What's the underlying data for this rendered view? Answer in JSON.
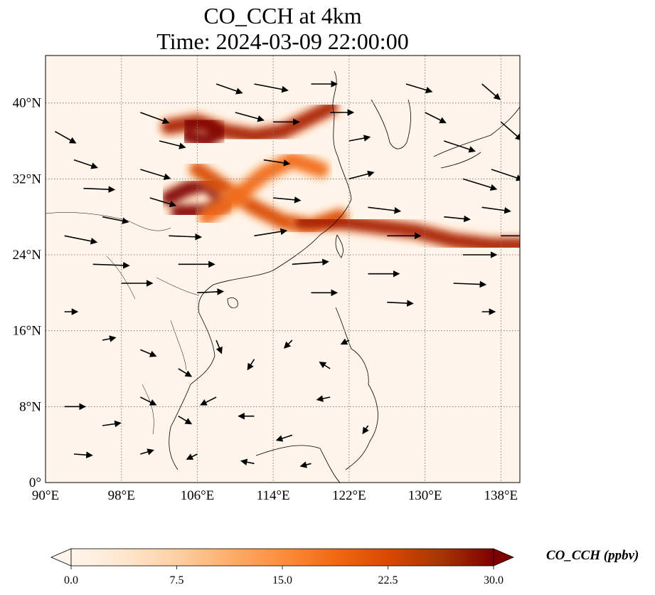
{
  "title_line1": "CO_CCH at 4km",
  "title_line2": "Time: 2024-03-09 22:00:00",
  "map": {
    "lon_range": [
      90,
      140
    ],
    "lat_range": [
      0,
      45
    ],
    "lat_ticks": [
      {
        "value": 0,
        "label": "0°"
      },
      {
        "value": 8,
        "label": "8°N"
      },
      {
        "value": 16,
        "label": "16°N"
      },
      {
        "value": 24,
        "label": "24°N"
      },
      {
        "value": 32,
        "label": "32°N"
      },
      {
        "value": 40,
        "label": "40°N"
      }
    ],
    "lon_ticks": [
      {
        "value": 90,
        "label": "90°E"
      },
      {
        "value": 98,
        "label": "98°E"
      },
      {
        "value": 106,
        "label": "106°E"
      },
      {
        "value": 114,
        "label": "114°E"
      },
      {
        "value": 122,
        "label": "122°E"
      },
      {
        "value": 130,
        "label": "130°E"
      },
      {
        "value": 138,
        "label": "138°E"
      }
    ],
    "gridlines": true,
    "background_color": "#fff5eb",
    "coastline_color": "#000000"
  },
  "colorbar": {
    "label": "CO_CCH (ppbv)",
    "min": 0.0,
    "max": 30.0,
    "extend": "both",
    "ticks": [
      "0.0",
      "7.5",
      "15.0",
      "22.5",
      "30.0"
    ],
    "colormap": [
      "#fff5eb",
      "#fee6ce",
      "#fdd0a2",
      "#fdae6b",
      "#fd8d3c",
      "#f16913",
      "#d94801",
      "#a63603",
      "#7f0000"
    ]
  },
  "plumes": [
    {
      "name": "north-china-plume",
      "color": "#a61c00",
      "lonlat": [
        [
          103,
          37.5
        ],
        [
          106,
          38
        ],
        [
          109,
          37
        ],
        [
          112,
          36.5
        ],
        [
          115,
          37
        ],
        [
          118,
          38.5
        ],
        [
          120,
          39.5
        ]
      ]
    },
    {
      "name": "sichuan-hotspot",
      "color": "#7f0000",
      "lonlat": [
        [
          103,
          30
        ],
        [
          105,
          31
        ],
        [
          107,
          31.5
        ],
        [
          109,
          29.5
        ],
        [
          107,
          28.5
        ],
        [
          104,
          28.5
        ]
      ]
    },
    {
      "name": "north-hotspot",
      "color": "#7f0000",
      "lonlat": [
        [
          105,
          38
        ],
        [
          107,
          38
        ],
        [
          108.5,
          37
        ],
        [
          107,
          36
        ],
        [
          105,
          36.5
        ]
      ]
    },
    {
      "name": "central-band",
      "color": "#d94801",
      "lonlat": [
        [
          106,
          33
        ],
        [
          109,
          31
        ],
        [
          112,
          29
        ],
        [
          115,
          27.5
        ],
        [
          118,
          27
        ],
        [
          121,
          28
        ]
      ]
    },
    {
      "name": "east-band",
      "color": "#a61c00",
      "lonlat": [
        [
          117,
          27.5
        ],
        [
          121,
          27.5
        ],
        [
          125,
          27
        ],
        [
          129,
          26.5
        ],
        [
          133,
          25.5
        ],
        [
          137,
          25
        ],
        [
          140,
          25
        ]
      ]
    },
    {
      "name": "diagonal-band",
      "color": "#f16913",
      "lonlat": [
        [
          107,
          28
        ],
        [
          110,
          30
        ],
        [
          113,
          32.5
        ],
        [
          116,
          34
        ],
        [
          119,
          33
        ]
      ]
    }
  ],
  "wind_vectors": [
    {
      "lon": 91,
      "lat": 37,
      "u": 1.6,
      "v": -0.9
    },
    {
      "lon": 93,
      "lat": 34,
      "u": 1.8,
      "v": -0.6
    },
    {
      "lon": 94,
      "lat": 31,
      "u": 2.4,
      "v": -0.1
    },
    {
      "lon": 96,
      "lat": 28,
      "u": 2.0,
      "v": -0.4
    },
    {
      "lon": 92,
      "lat": 26,
      "u": 2.5,
      "v": -0.5
    },
    {
      "lon": 95,
      "lat": 23,
      "u": 2.8,
      "v": -0.1
    },
    {
      "lon": 98,
      "lat": 21,
      "u": 2.4,
      "v": 0.0
    },
    {
      "lon": 100,
      "lat": 39,
      "u": 2.2,
      "v": -0.8
    },
    {
      "lon": 102,
      "lat": 36,
      "u": 2.0,
      "v": -0.5
    },
    {
      "lon": 100,
      "lat": 33,
      "u": 2.3,
      "v": -0.7
    },
    {
      "lon": 101,
      "lat": 30,
      "u": 2.0,
      "v": -0.6
    },
    {
      "lon": 103,
      "lat": 26,
      "u": 2.5,
      "v": -0.1
    },
    {
      "lon": 104,
      "lat": 23,
      "u": 2.8,
      "v": 0.0
    },
    {
      "lon": 106,
      "lat": 20,
      "u": 2.0,
      "v": 0.1
    },
    {
      "lon": 108,
      "lat": 42,
      "u": 2.0,
      "v": -0.7
    },
    {
      "lon": 110,
      "lat": 39,
      "u": 2.2,
      "v": -0.6
    },
    {
      "lon": 112,
      "lat": 42,
      "u": 2.6,
      "v": -0.5
    },
    {
      "lon": 114,
      "lat": 38,
      "u": 2.0,
      "v": 0.0
    },
    {
      "lon": 113,
      "lat": 34,
      "u": 2.0,
      "v": -0.3
    },
    {
      "lon": 114,
      "lat": 30,
      "u": 2.1,
      "v": -0.2
    },
    {
      "lon": 112,
      "lat": 26,
      "u": 2.5,
      "v": 0.4
    },
    {
      "lon": 116,
      "lat": 23,
      "u": 2.8,
      "v": 0.2
    },
    {
      "lon": 118,
      "lat": 20,
      "u": 2.0,
      "v": 0.0
    },
    {
      "lon": 118,
      "lat": 42,
      "u": 2.0,
      "v": 0.0
    },
    {
      "lon": 120,
      "lat": 39,
      "u": 1.8,
      "v": 0.0
    },
    {
      "lon": 122,
      "lat": 36,
      "u": 1.6,
      "v": 0.3
    },
    {
      "lon": 122,
      "lat": 32,
      "u": 1.9,
      "v": 0.5
    },
    {
      "lon": 124,
      "lat": 29,
      "u": 2.5,
      "v": -0.3
    },
    {
      "lon": 126,
      "lat": 26,
      "u": 2.6,
      "v": 0.0
    },
    {
      "lon": 124,
      "lat": 22,
      "u": 2.4,
      "v": 0.0
    },
    {
      "lon": 126,
      "lat": 19,
      "u": 2.0,
      "v": -0.1
    },
    {
      "lon": 128,
      "lat": 42,
      "u": 2.0,
      "v": -0.6
    },
    {
      "lon": 130,
      "lat": 39,
      "u": 1.6,
      "v": -0.8
    },
    {
      "lon": 132,
      "lat": 36,
      "u": 2.4,
      "v": -0.8
    },
    {
      "lon": 134,
      "lat": 32,
      "u": 2.6,
      "v": -0.8
    },
    {
      "lon": 132,
      "lat": 28,
      "u": 2.0,
      "v": -0.2
    },
    {
      "lon": 134,
      "lat": 24,
      "u": 2.6,
      "v": 0.0
    },
    {
      "lon": 133,
      "lat": 21,
      "u": 2.5,
      "v": -0.1
    },
    {
      "lon": 136,
      "lat": 42,
      "u": 1.4,
      "v": -1.2
    },
    {
      "lon": 138,
      "lat": 38,
      "u": 1.6,
      "v": -1.4
    },
    {
      "lon": 137,
      "lat": 33,
      "u": 2.4,
      "v": -0.8
    },
    {
      "lon": 136,
      "lat": 29,
      "u": 2.2,
      "v": -0.3
    },
    {
      "lon": 138,
      "lat": 26,
      "u": 2.4,
      "v": 0.0
    },
    {
      "lon": 136,
      "lat": 18,
      "u": 1.0,
      "v": 0.0
    },
    {
      "lon": 92,
      "lat": 18,
      "u": 1.0,
      "v": 0.0
    },
    {
      "lon": 96,
      "lat": 15,
      "u": 1.0,
      "v": 0.2
    },
    {
      "lon": 100,
      "lat": 14,
      "u": 1.2,
      "v": -0.5
    },
    {
      "lon": 104,
      "lat": 12,
      "u": 1.0,
      "v": -0.6
    },
    {
      "lon": 108,
      "lat": 15,
      "u": 0.4,
      "v": -1.0
    },
    {
      "lon": 112,
      "lat": 13,
      "u": -0.5,
      "v": -0.8
    },
    {
      "lon": 116,
      "lat": 15,
      "u": -0.6,
      "v": -0.6
    },
    {
      "lon": 120,
      "lat": 12,
      "u": -0.8,
      "v": 0.5
    },
    {
      "lon": 122,
      "lat": 15,
      "u": -0.6,
      "v": -0.3
    },
    {
      "lon": 92,
      "lat": 8,
      "u": 1.6,
      "v": 0.0
    },
    {
      "lon": 96,
      "lat": 6,
      "u": 1.4,
      "v": 0.2
    },
    {
      "lon": 100,
      "lat": 9,
      "u": 1.2,
      "v": -0.6
    },
    {
      "lon": 104,
      "lat": 7,
      "u": 1.0,
      "v": -0.6
    },
    {
      "lon": 108,
      "lat": 9,
      "u": -1.2,
      "v": -0.6
    },
    {
      "lon": 112,
      "lat": 7,
      "u": -1.2,
      "v": 0.0
    },
    {
      "lon": 116,
      "lat": 5,
      "u": -1.2,
      "v": -0.4
    },
    {
      "lon": 120,
      "lat": 9,
      "u": -1.0,
      "v": -0.2
    },
    {
      "lon": 124,
      "lat": 6,
      "u": -0.4,
      "v": -0.6
    },
    {
      "lon": 93,
      "lat": 3,
      "u": 1.4,
      "v": -0.1
    },
    {
      "lon": 100,
      "lat": 3,
      "u": 1.0,
      "v": 0.3
    },
    {
      "lon": 106,
      "lat": 3,
      "u": -0.8,
      "v": -0.4
    },
    {
      "lon": 112,
      "lat": 2,
      "u": -1.0,
      "v": 0.2
    },
    {
      "lon": 118,
      "lat": 2,
      "u": -0.8,
      "v": -0.2
    }
  ]
}
